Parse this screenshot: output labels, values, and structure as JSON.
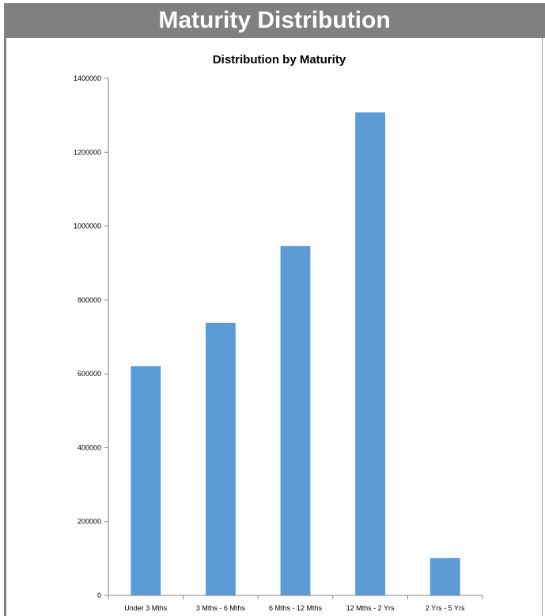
{
  "header": {
    "title": "Maturity Distribution"
  },
  "colors": {
    "header_bg": "#808080",
    "bar": "#5b9bd5",
    "axis": "#868686"
  },
  "chart_data": {
    "type": "bar",
    "title": "Distribution by Maturity",
    "xlabel": "",
    "ylabel": "",
    "categories": [
      "Under 3 Mths",
      "3 Mths - 6 Mths",
      "6 Mths - 12 Mths",
      "12 Mths - 2 Yrs",
      "2 Yrs - 5 Yrs"
    ],
    "values": [
      621000,
      738000,
      946000,
      1308000,
      101000
    ],
    "ylim": [
      0,
      1400000
    ],
    "yticks": [
      0,
      200000,
      400000,
      600000,
      800000,
      1000000,
      1200000,
      1400000
    ],
    "ytick_labels": [
      "0",
      "200000",
      "400000",
      "600000",
      "800000",
      "1000000",
      "1200000",
      "1400000"
    ],
    "grid": false,
    "legend": "none"
  }
}
